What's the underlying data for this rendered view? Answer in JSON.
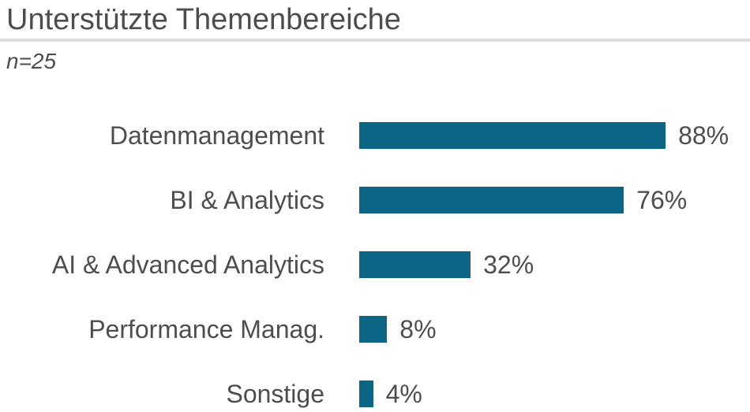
{
  "chart_data": {
    "type": "bar",
    "orientation": "horizontal",
    "title": "Unterstützte Themenbereiche",
    "subtitle": "n=25",
    "categories": [
      "Datenmanagement",
      "BI & Analytics",
      "AI & Advanced Analytics",
      "Performance Manag.",
      "Sonstige"
    ],
    "values": [
      88,
      76,
      32,
      8,
      4
    ],
    "value_labels": [
      "88%",
      "76%",
      "32%",
      "8%",
      "4%"
    ],
    "unit": "%",
    "xlim": [
      0,
      100
    ],
    "grid": false,
    "legend": false,
    "axis_ticks_visible": false,
    "colors": {
      "bar": "#0d6585",
      "text": "#4d4d4d",
      "divider": "#dcdcdc",
      "background": "#ffffff"
    }
  }
}
